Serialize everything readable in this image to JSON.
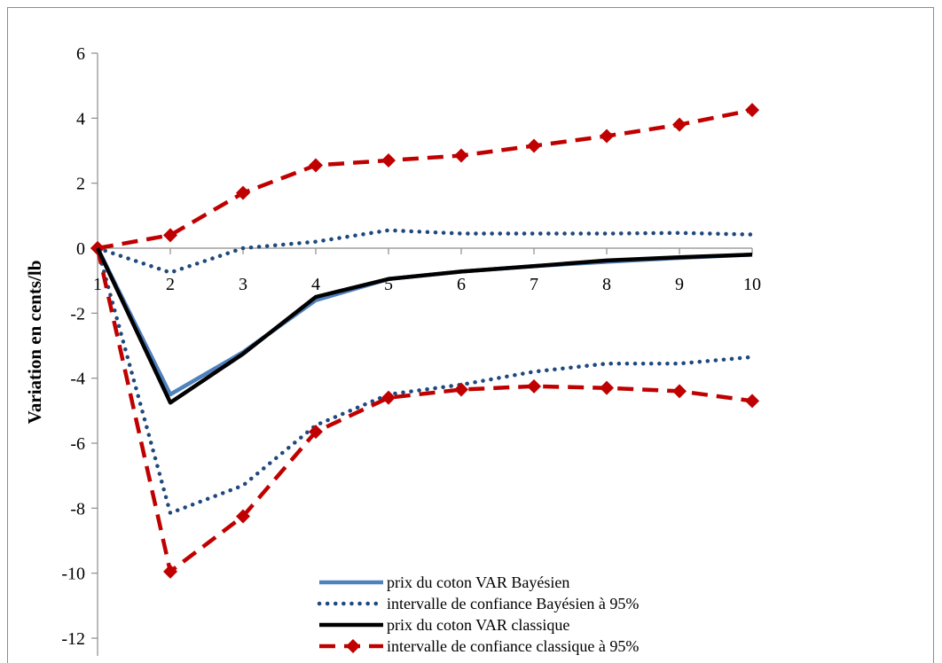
{
  "chart_data": {
    "type": "line",
    "title": "",
    "xlabel": "",
    "ylabel": "Variation en cents/lb",
    "x": [
      1,
      2,
      3,
      4,
      5,
      6,
      7,
      8,
      9,
      10
    ],
    "x_ticks": [
      "1",
      "2",
      "3",
      "4",
      "5",
      "6",
      "7",
      "8",
      "9",
      "10"
    ],
    "y_ticks": [
      "6",
      "4",
      "2",
      "0",
      "-2",
      "-4",
      "-6",
      "-8",
      "-10",
      "-12"
    ],
    "ylim": [
      -12,
      6
    ],
    "grid": false,
    "legend_position": "bottom-right",
    "series": [
      {
        "name": "prix du coton VAR Bayésien",
        "values": [
          0,
          -4.5,
          -3.2,
          -1.6,
          -0.95,
          -0.72,
          -0.55,
          -0.42,
          -0.3,
          -0.2
        ],
        "color": "#4f81bd",
        "style": "solid"
      },
      {
        "name": "intervalle de confiance Bayésien à 95%",
        "values": [
          0,
          -0.75,
          0,
          0.2,
          0.55,
          0.45,
          0.45,
          0.45,
          0.47,
          0.42
        ],
        "color": "#1f497d",
        "style": "dotted"
      },
      {
        "name": "prix du coton VAR classique",
        "values": [
          0,
          -4.75,
          -3.25,
          -1.5,
          -0.95,
          -0.72,
          -0.55,
          -0.38,
          -0.28,
          -0.2
        ],
        "color": "#000000",
        "style": "solid-thick"
      },
      {
        "name": "intervalle de confiance classique à 95%",
        "values": [
          0,
          0.4,
          1.7,
          2.55,
          2.7,
          2.85,
          3.15,
          3.45,
          3.8,
          4.25
        ],
        "color": "#c00000",
        "style": "dashed-diamond"
      },
      {
        "name": "",
        "values": [
          0,
          -8.15,
          -7.3,
          -5.45,
          -4.5,
          -4.2,
          -3.8,
          -3.55,
          -3.55,
          -3.35
        ],
        "color": "#1f497d",
        "style": "dotted"
      },
      {
        "name": "",
        "values": [
          0,
          -9.95,
          -8.25,
          -5.65,
          -4.6,
          -4.35,
          -4.25,
          -4.3,
          -4.4,
          -4.7
        ],
        "color": "#c00000",
        "style": "dashed-diamond"
      }
    ]
  }
}
